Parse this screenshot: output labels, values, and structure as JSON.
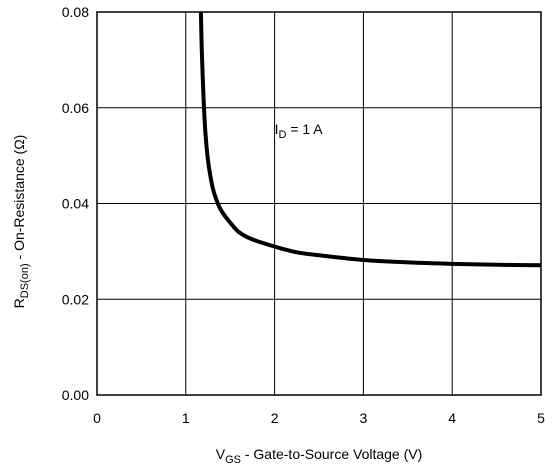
{
  "chart_data": {
    "type": "line",
    "title": "",
    "xlabel": {
      "main": "V",
      "sub": "GS",
      "rest": " - Gate-to-Source Voltage (V)"
    },
    "ylabel": {
      "main": "R",
      "sub": "DS(on)",
      "rest": "  -  On-Resistance (Ω)"
    },
    "xlim": [
      0,
      5
    ],
    "ylim": [
      0.0,
      0.08
    ],
    "xticks": [
      0,
      1,
      2,
      3,
      4,
      5
    ],
    "xtick_labels": [
      "0",
      "1",
      "2",
      "3",
      "4",
      "5"
    ],
    "yticks": [
      0.0,
      0.02,
      0.04,
      0.06,
      0.08
    ],
    "ytick_labels": [
      "0.00",
      "0.02",
      "0.04",
      "0.06",
      "0.08"
    ],
    "grid": true,
    "annotation": {
      "main": "I",
      "sub": "D",
      "rest": " = 1 A",
      "x": 2.0,
      "y": 0.0545
    },
    "series": [
      {
        "color": "#000000",
        "x": [
          1.17,
          1.18,
          1.2,
          1.22,
          1.25,
          1.3,
          1.35,
          1.4,
          1.5,
          1.6,
          1.75,
          2.0,
          2.25,
          2.5,
          3.0,
          3.5,
          4.0,
          4.5,
          5.0
        ],
        "y": [
          0.08,
          0.072,
          0.062,
          0.055,
          0.049,
          0.0435,
          0.0405,
          0.0385,
          0.036,
          0.034,
          0.0325,
          0.031,
          0.0298,
          0.0292,
          0.0282,
          0.0277,
          0.0274,
          0.0272,
          0.0271
        ]
      }
    ]
  }
}
